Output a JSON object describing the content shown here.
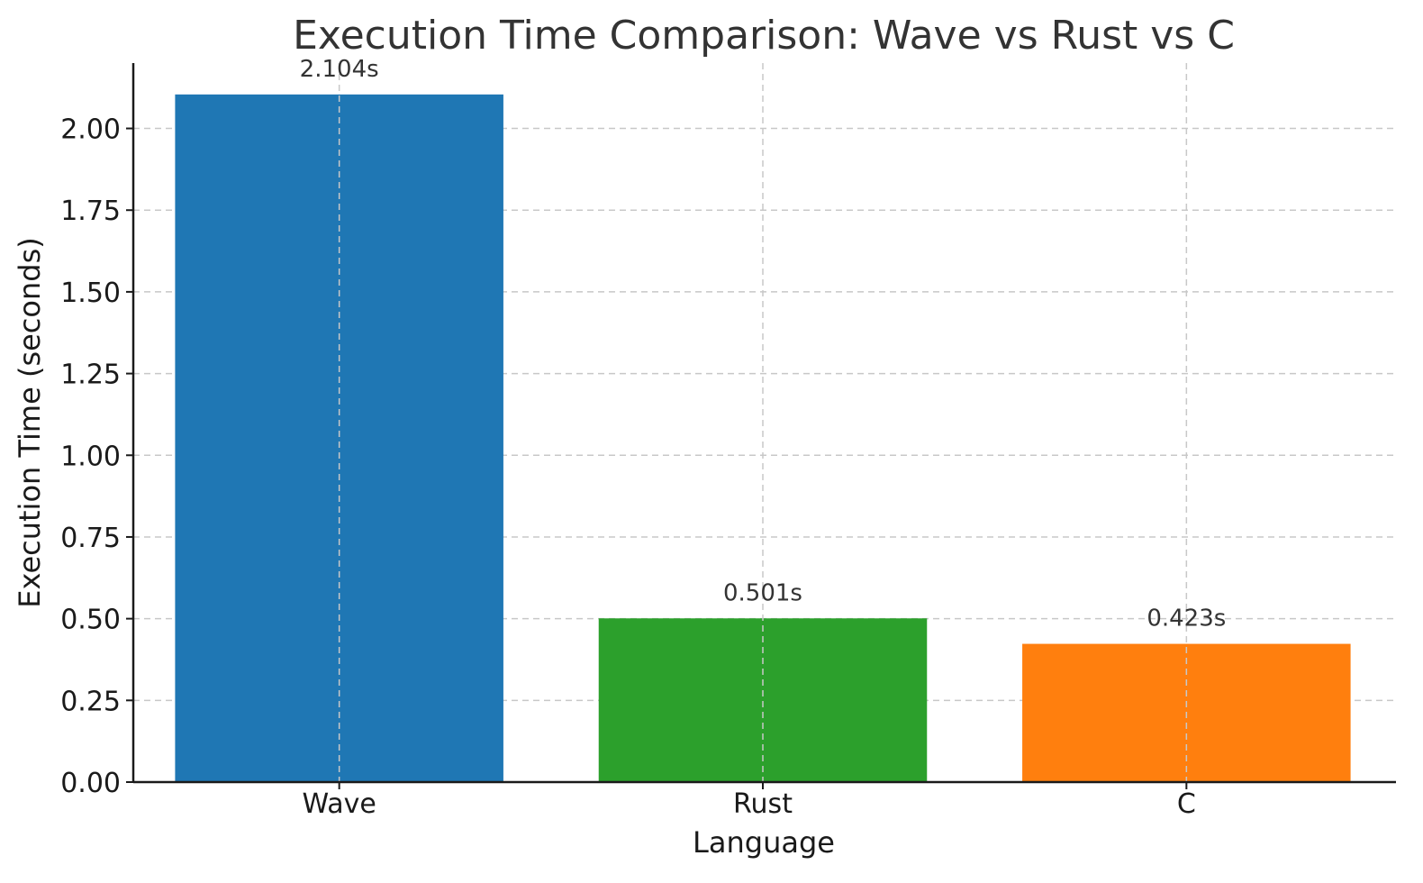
{
  "chart_data": {
    "type": "bar",
    "title": "Execution Time Comparison: Wave vs Rust vs C",
    "xlabel": "Language",
    "ylabel": "Execution Time (seconds)",
    "categories": [
      "Wave",
      "Rust",
      "C"
    ],
    "values": [
      2.104,
      0.501,
      0.423
    ],
    "data_labels": [
      "2.104s",
      "0.501s",
      "0.423s"
    ],
    "colors": [
      "#1f77b4",
      "#2ca02c",
      "#ff7f0e"
    ],
    "ylim": [
      0,
      2.2
    ],
    "yticks": [
      0,
      0.25,
      0.5,
      0.75,
      1.0,
      1.25,
      1.5,
      1.75,
      2.0
    ],
    "ytick_labels": [
      "0.00",
      "0.25",
      "0.50",
      "0.75",
      "1.00",
      "1.25",
      "1.50",
      "1.75",
      "2.00"
    ],
    "grid": true,
    "legend": false
  }
}
